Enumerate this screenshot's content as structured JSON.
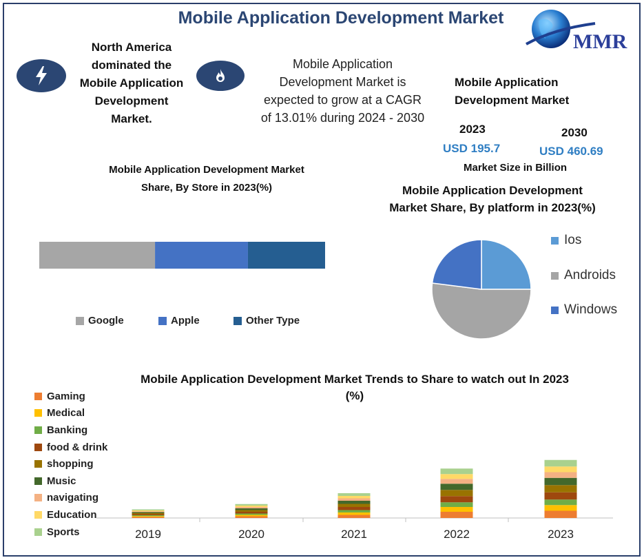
{
  "title": "Mobile Application Development Market",
  "logo_text": "MMR",
  "header": {
    "region_lines": [
      "North America",
      "dominated the",
      "Mobile Application",
      "Development",
      "Market."
    ],
    "cagr_lines": [
      "Mobile Application",
      "Development Market is",
      "expected to grow at a CAGR",
      "of 13.01% during 2024 - 2030"
    ],
    "size_title_lines": [
      "Mobile Application",
      "Development Market"
    ],
    "year_2023": "2023",
    "value_2023": "USD 195.7",
    "year_2030": "2030",
    "value_2030": "USD 460.69",
    "size_caption": "Market Size in Billion"
  },
  "icons": [
    "lightning-icon",
    "flame-icon",
    "globe-icon"
  ],
  "colors": {
    "navy": "#2b4673",
    "google": "#a6a6a6",
    "apple": "#4472c4",
    "other": "#255e91",
    "ios": "#5b9bd5",
    "androids": "#a5a5a5",
    "windows": "#4472c4"
  },
  "chart_data": [
    {
      "type": "bar",
      "orientation": "horizontal-stacked",
      "title_lines": [
        "Mobile Application Development Market",
        "Share, By Store in 2023(%)"
      ],
      "categories": [
        "Google",
        "Apple",
        "Other Type"
      ],
      "values": [
        40.5,
        32.5,
        27.0
      ],
      "colors": [
        "#a6a6a6",
        "#4472c4",
        "#255e91"
      ],
      "legend": "bottom"
    },
    {
      "type": "pie",
      "title_lines": [
        "Mobile Application Development",
        "Market Share, By platform in 2023(%)"
      ],
      "labels": [
        "Ios",
        "Androids",
        "Windows"
      ],
      "values": [
        25,
        52,
        23
      ],
      "colors": [
        "#5b9bd5",
        "#a5a5a5",
        "#4472c4"
      ],
      "legend": "right"
    },
    {
      "type": "bar",
      "orientation": "vertical-stacked",
      "title_lines": [
        "Mobile Application Development Market  Trends to Share to watch out In 2023",
        "(%)"
      ],
      "categories": [
        "2019",
        "2020",
        "2021",
        "2022",
        "2023"
      ],
      "legend": "left",
      "series": [
        {
          "name": "Gaming",
          "color": "#ed7d31",
          "values": [
            0.6,
            1.0,
            1.8,
            3.6,
            4.2
          ]
        },
        {
          "name": "Medical",
          "color": "#ffc000",
          "values": [
            0.5,
            0.8,
            1.4,
            2.8,
            3.3
          ]
        },
        {
          "name": "Banking",
          "color": "#70ad47",
          "values": [
            0.5,
            0.8,
            1.4,
            2.7,
            3.2
          ]
        },
        {
          "name": "food & drink",
          "color": "#9e480e",
          "values": [
            0.6,
            1.0,
            1.8,
            3.6,
            4.2
          ]
        },
        {
          "name": "shopping",
          "color": "#997300",
          "values": [
            0.6,
            1.0,
            1.8,
            3.6,
            4.2
          ]
        },
        {
          "name": "Music",
          "color": "#43682b",
          "values": [
            0.6,
            1.0,
            1.8,
            3.6,
            4.2
          ]
        },
        {
          "name": "navigating",
          "color": "#f4b183",
          "values": [
            0.5,
            0.8,
            1.4,
            2.8,
            3.3
          ]
        },
        {
          "name": "Education",
          "color": "#ffd966",
          "values": [
            0.5,
            0.8,
            1.4,
            2.8,
            3.3
          ]
        },
        {
          "name": "Sports",
          "color": "#a9d18e",
          "values": [
            0.6,
            0.9,
            1.6,
            3.2,
            3.8
          ]
        }
      ]
    }
  ]
}
